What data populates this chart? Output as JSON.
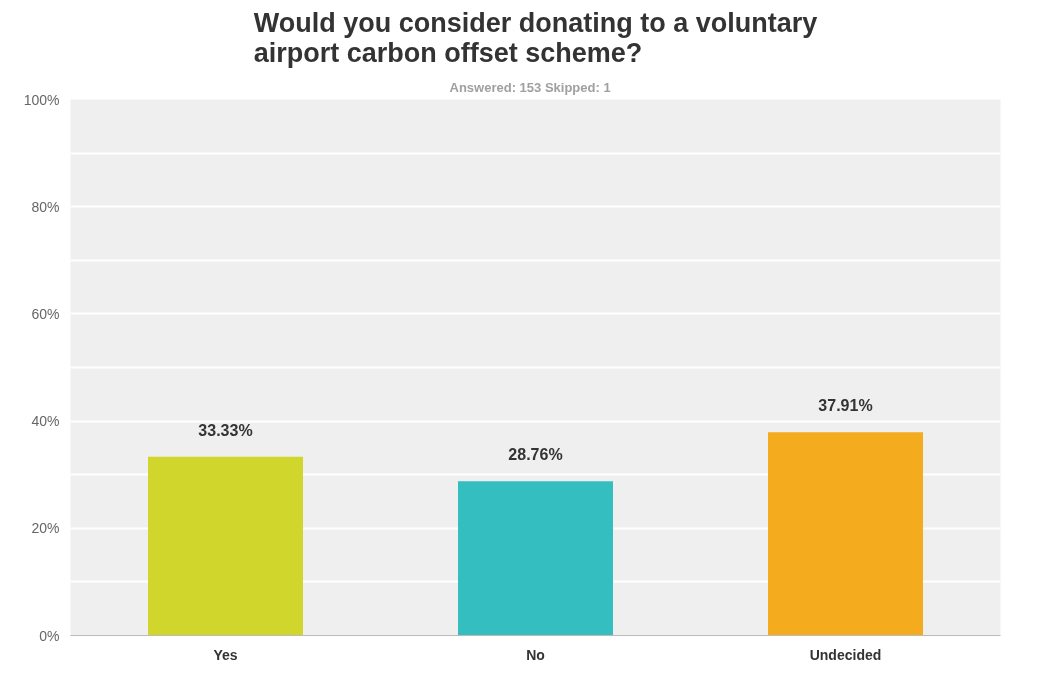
{
  "chart_data": {
    "type": "bar",
    "title": "Would you consider donating to a voluntary airport carbon offset scheme?",
    "subtitle": "Answered: 153    Skipped: 1",
    "categories": [
      "Yes",
      "No",
      "Undecided"
    ],
    "values": [
      33.33,
      28.76,
      37.91
    ],
    "value_labels": [
      "33.33%",
      "28.76%",
      "37.91%"
    ],
    "colors": [
      "#d0d62b",
      "#35bec0",
      "#f5ab1e"
    ],
    "ylim": [
      0,
      100
    ],
    "yticks": [
      {
        "value": 0,
        "label": "0%"
      },
      {
        "value": 10,
        "label": null
      },
      {
        "value": 20,
        "label": "20%"
      },
      {
        "value": 30,
        "label": null
      },
      {
        "value": 40,
        "label": "40%"
      },
      {
        "value": 50,
        "label": null
      },
      {
        "value": 60,
        "label": "60%"
      },
      {
        "value": 70,
        "label": null
      },
      {
        "value": 80,
        "label": "80%"
      },
      {
        "value": 90,
        "label": null
      },
      {
        "value": 100,
        "label": "100%"
      }
    ],
    "grid": "y"
  }
}
